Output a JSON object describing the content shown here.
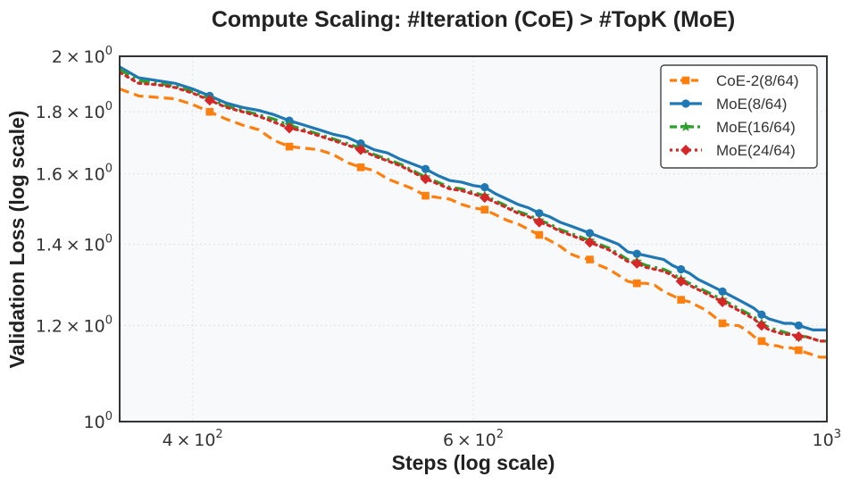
{
  "chart_data": {
    "type": "line",
    "title": "Compute Scaling: #Iteration (CoE) > #TopK (MoE)",
    "xlabel": "Steps (log scale)",
    "ylabel": "Validation Loss (log scale)",
    "xscale": "log",
    "yscale": "log",
    "xlim": [
      360,
      1000
    ],
    "ylim": [
      1.0,
      2.0
    ],
    "grid": true,
    "legend_position": "top-right",
    "x_ticks": [
      {
        "value": 400,
        "mantissa": "4",
        "base": "10",
        "exp": "2"
      },
      {
        "value": 600,
        "mantissa": "6",
        "base": "10",
        "exp": "2"
      },
      {
        "value": 1000,
        "mantissa": "",
        "base": "10",
        "exp": "3"
      }
    ],
    "y_ticks": [
      {
        "value": 1.0,
        "mantissa": "",
        "base": "10",
        "exp": "0"
      },
      {
        "value": 1.2,
        "mantissa": "1.2",
        "base": "10",
        "exp": "0"
      },
      {
        "value": 1.4,
        "mantissa": "1.4",
        "base": "10",
        "exp": "0"
      },
      {
        "value": 1.6,
        "mantissa": "1.6",
        "base": "10",
        "exp": "0"
      },
      {
        "value": 1.8,
        "mantissa": "1.8",
        "base": "10",
        "exp": "0"
      },
      {
        "value": 2.0,
        "mantissa": "2",
        "base": "10",
        "exp": "0"
      }
    ],
    "series": [
      {
        "name": "CoE-2(8/64)",
        "color": "#ff7f0e",
        "dash": "dashed",
        "marker": "square",
        "x": [
          360,
          370,
          380,
          390,
          400,
          410,
          420,
          430,
          440,
          450,
          460,
          470,
          480,
          490,
          500,
          510,
          520,
          530,
          540,
          550,
          560,
          570,
          580,
          590,
          600,
          610,
          620,
          630,
          640,
          650,
          660,
          670,
          680,
          690,
          700,
          710,
          720,
          730,
          740,
          750,
          760,
          770,
          780,
          790,
          800,
          810,
          820,
          830,
          840,
          850,
          860,
          870,
          880,
          890,
          900,
          910,
          920,
          930,
          940,
          950,
          960,
          970,
          980,
          990,
          1000
        ],
        "y": [
          1.88,
          1.855,
          1.85,
          1.845,
          1.825,
          1.8,
          1.775,
          1.755,
          1.74,
          1.705,
          1.685,
          1.68,
          1.675,
          1.66,
          1.635,
          1.62,
          1.61,
          1.585,
          1.57,
          1.555,
          1.535,
          1.53,
          1.525,
          1.51,
          1.5,
          1.495,
          1.48,
          1.465,
          1.455,
          1.44,
          1.425,
          1.41,
          1.395,
          1.375,
          1.365,
          1.36,
          1.345,
          1.335,
          1.32,
          1.305,
          1.3,
          1.3,
          1.295,
          1.28,
          1.27,
          1.26,
          1.255,
          1.245,
          1.235,
          1.22,
          1.205,
          1.2,
          1.2,
          1.19,
          1.175,
          1.165,
          1.155,
          1.155,
          1.15,
          1.15,
          1.145,
          1.14,
          1.135,
          1.13,
          1.13
        ],
        "marker_every": 5
      },
      {
        "name": "MoE(8/64)",
        "color": "#1f77b4",
        "dash": "solid",
        "marker": "circle",
        "x": [
          360,
          370,
          380,
          390,
          400,
          410,
          420,
          430,
          440,
          450,
          460,
          470,
          480,
          490,
          500,
          510,
          520,
          530,
          540,
          550,
          560,
          570,
          580,
          590,
          600,
          610,
          620,
          630,
          640,
          650,
          660,
          670,
          680,
          690,
          700,
          710,
          720,
          730,
          740,
          750,
          760,
          770,
          780,
          790,
          800,
          810,
          820,
          830,
          840,
          850,
          860,
          870,
          880,
          890,
          900,
          910,
          920,
          930,
          940,
          950,
          960,
          970,
          980,
          990,
          1000
        ],
        "y": [
          1.96,
          1.92,
          1.91,
          1.9,
          1.88,
          1.855,
          1.83,
          1.815,
          1.805,
          1.79,
          1.77,
          1.755,
          1.74,
          1.725,
          1.715,
          1.695,
          1.675,
          1.665,
          1.645,
          1.63,
          1.615,
          1.595,
          1.58,
          1.575,
          1.565,
          1.56,
          1.54,
          1.525,
          1.51,
          1.5,
          1.485,
          1.475,
          1.46,
          1.45,
          1.44,
          1.43,
          1.42,
          1.41,
          1.4,
          1.38,
          1.375,
          1.37,
          1.365,
          1.36,
          1.345,
          1.335,
          1.325,
          1.31,
          1.3,
          1.29,
          1.28,
          1.27,
          1.26,
          1.25,
          1.24,
          1.225,
          1.215,
          1.21,
          1.205,
          1.205,
          1.2,
          1.195,
          1.19,
          1.19,
          1.19
        ],
        "marker_every": 5
      },
      {
        "name": "MoE(16/64)",
        "color": "#2ca02c",
        "dash": "dashdot",
        "marker": "star",
        "x": [
          360,
          370,
          380,
          390,
          400,
          410,
          420,
          430,
          440,
          450,
          460,
          470,
          480,
          490,
          500,
          510,
          520,
          530,
          540,
          550,
          560,
          570,
          580,
          590,
          600,
          610,
          620,
          630,
          640,
          650,
          660,
          670,
          680,
          690,
          700,
          710,
          720,
          730,
          740,
          750,
          760,
          770,
          780,
          790,
          800,
          810,
          820,
          830,
          840,
          850,
          860,
          870,
          880,
          890,
          900,
          910,
          920,
          930,
          940,
          950,
          960,
          970,
          980,
          990,
          1000
        ],
        "y": [
          1.95,
          1.91,
          1.9,
          1.89,
          1.87,
          1.845,
          1.82,
          1.805,
          1.79,
          1.775,
          1.755,
          1.74,
          1.725,
          1.71,
          1.695,
          1.68,
          1.66,
          1.645,
          1.63,
          1.61,
          1.59,
          1.575,
          1.56,
          1.555,
          1.545,
          1.535,
          1.52,
          1.505,
          1.49,
          1.48,
          1.465,
          1.455,
          1.44,
          1.43,
          1.42,
          1.41,
          1.4,
          1.39,
          1.375,
          1.36,
          1.355,
          1.345,
          1.34,
          1.335,
          1.325,
          1.31,
          1.3,
          1.29,
          1.28,
          1.27,
          1.26,
          1.25,
          1.24,
          1.23,
          1.22,
          1.205,
          1.195,
          1.19,
          1.185,
          1.18,
          1.175,
          1.175,
          1.17,
          1.165,
          1.165
        ],
        "marker_every": 5
      },
      {
        "name": "MoE(24/64)",
        "color": "#d62728",
        "dash": "dotted",
        "marker": "diamond",
        "x": [
          360,
          370,
          380,
          390,
          400,
          410,
          420,
          430,
          440,
          450,
          460,
          470,
          480,
          490,
          500,
          510,
          520,
          530,
          540,
          550,
          560,
          570,
          580,
          590,
          600,
          610,
          620,
          630,
          640,
          650,
          660,
          670,
          680,
          690,
          700,
          710,
          720,
          730,
          740,
          750,
          760,
          770,
          780,
          790,
          800,
          810,
          820,
          830,
          840,
          850,
          860,
          870,
          880,
          890,
          900,
          910,
          920,
          930,
          940,
          950,
          960,
          970,
          980,
          990,
          1000
        ],
        "y": [
          1.94,
          1.9,
          1.895,
          1.885,
          1.865,
          1.84,
          1.815,
          1.8,
          1.785,
          1.765,
          1.745,
          1.735,
          1.72,
          1.705,
          1.69,
          1.675,
          1.655,
          1.64,
          1.625,
          1.605,
          1.585,
          1.57,
          1.555,
          1.55,
          1.54,
          1.53,
          1.515,
          1.5,
          1.485,
          1.475,
          1.46,
          1.45,
          1.435,
          1.425,
          1.415,
          1.405,
          1.395,
          1.385,
          1.37,
          1.355,
          1.35,
          1.34,
          1.335,
          1.33,
          1.32,
          1.305,
          1.295,
          1.285,
          1.275,
          1.265,
          1.255,
          1.245,
          1.235,
          1.225,
          1.215,
          1.2,
          1.19,
          1.185,
          1.18,
          1.18,
          1.175,
          1.175,
          1.17,
          1.165,
          1.165
        ],
        "marker_every": 5
      }
    ]
  }
}
